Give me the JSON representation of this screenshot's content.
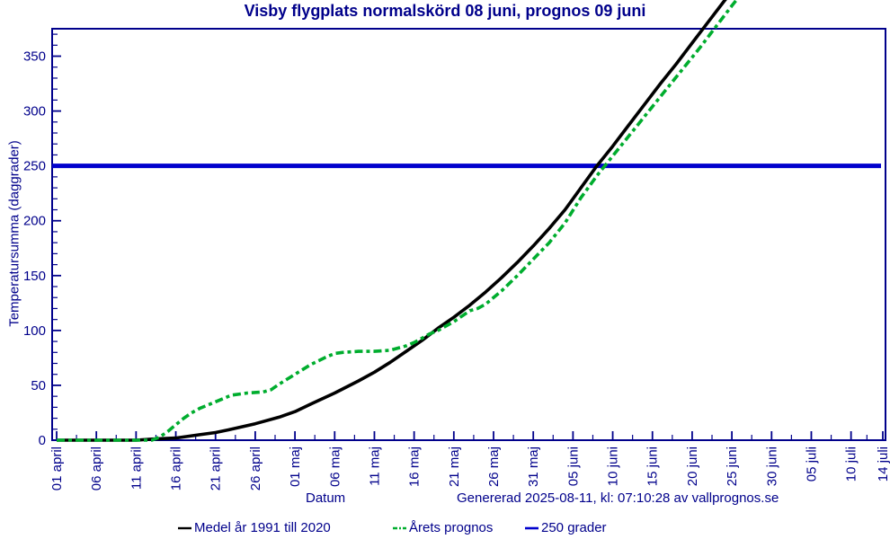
{
  "title": "Visby flygplats normalskörd 08 juni, prognos 09 juni",
  "footer": {
    "xlabel": "Datum",
    "generated": "Genererad 2025-08-11, kl: 07:10:28 av vallprognos.se"
  },
  "legend": [
    {
      "label": "Medel år 1991 till 2020",
      "color": "#000000",
      "style": "solid"
    },
    {
      "label": "Årets prognos",
      "color": "#00AD2E",
      "style": "dash-dot"
    },
    {
      "label": "250 grader",
      "color": "#0000CD",
      "style": "solid"
    }
  ],
  "colors": {
    "axis": "#00008B",
    "text": "#00008B",
    "mean_line": "#000000",
    "forecast_line": "#00AD2E",
    "threshold_line": "#0000CD",
    "background": "#FFFFFF"
  },
  "chart_data": {
    "type": "line",
    "title": "Visby flygplats normalskörd 08 juni, prognos 09 juni",
    "xlabel": "Datum",
    "ylabel": "Temperatursumma (daggrader)",
    "ylim": [
      0,
      375
    ],
    "y_major_ticks": [
      0,
      50,
      100,
      150,
      200,
      250,
      300,
      350
    ],
    "y_minor_step": 10,
    "x_unit": "days since 01 april",
    "xlim": [
      0,
      104
    ],
    "x_ticks": [
      {
        "day": 0,
        "label": "01 april"
      },
      {
        "day": 5,
        "label": "06 april"
      },
      {
        "day": 10,
        "label": "11 april"
      },
      {
        "day": 15,
        "label": "16 april"
      },
      {
        "day": 20,
        "label": "21 april"
      },
      {
        "day": 25,
        "label": "26 april"
      },
      {
        "day": 30,
        "label": "01 maj"
      },
      {
        "day": 35,
        "label": "06 maj"
      },
      {
        "day": 40,
        "label": "11 maj"
      },
      {
        "day": 45,
        "label": "16 maj"
      },
      {
        "day": 50,
        "label": "21 maj"
      },
      {
        "day": 55,
        "label": "26 maj"
      },
      {
        "day": 60,
        "label": "31 maj"
      },
      {
        "day": 65,
        "label": "05 juni"
      },
      {
        "day": 70,
        "label": "10 juni"
      },
      {
        "day": 75,
        "label": "15 juni"
      },
      {
        "day": 80,
        "label": "20 juni"
      },
      {
        "day": 85,
        "label": "25 juni"
      },
      {
        "day": 90,
        "label": "30 juni"
      },
      {
        "day": 95,
        "label": "05 juli"
      },
      {
        "day": 100,
        "label": "10 juli"
      },
      {
        "day": 104,
        "label": "14 juli"
      }
    ],
    "hline": {
      "value": 250,
      "label": "250 grader",
      "color": "#0000CD"
    },
    "series": [
      {
        "name": "Medel år 1991 till 2020",
        "style": "solid",
        "color": "#000000",
        "points": [
          [
            0,
            0
          ],
          [
            5,
            0
          ],
          [
            10,
            0
          ],
          [
            12,
            1
          ],
          [
            15,
            2
          ],
          [
            18,
            5
          ],
          [
            20,
            7
          ],
          [
            22,
            10
          ],
          [
            25,
            15
          ],
          [
            28,
            21
          ],
          [
            30,
            26
          ],
          [
            32,
            33
          ],
          [
            35,
            43
          ],
          [
            38,
            54
          ],
          [
            40,
            62
          ],
          [
            42,
            71
          ],
          [
            44,
            81
          ],
          [
            46,
            91
          ],
          [
            48,
            102
          ],
          [
            50,
            112
          ],
          [
            52,
            123
          ],
          [
            54,
            135
          ],
          [
            56,
            148
          ],
          [
            58,
            162
          ],
          [
            60,
            177
          ],
          [
            62,
            193
          ],
          [
            64,
            210
          ],
          [
            66,
            230
          ],
          [
            68,
            250
          ],
          [
            70,
            268
          ],
          [
            72,
            287
          ],
          [
            74,
            306
          ],
          [
            76,
            325
          ],
          [
            78,
            343
          ],
          [
            80,
            362
          ],
          [
            82,
            381
          ],
          [
            84,
            400
          ],
          [
            85,
            409
          ]
        ]
      },
      {
        "name": "Årets prognos",
        "style": "dash-dot",
        "color": "#00AD2E",
        "points": [
          [
            0,
            0
          ],
          [
            5,
            0
          ],
          [
            10,
            0
          ],
          [
            12,
            0
          ],
          [
            13,
            3
          ],
          [
            14,
            8
          ],
          [
            15,
            14
          ],
          [
            16,
            20
          ],
          [
            17,
            25
          ],
          [
            18,
            29
          ],
          [
            20,
            35
          ],
          [
            21,
            38
          ],
          [
            22,
            41
          ],
          [
            24,
            43
          ],
          [
            26,
            44
          ],
          [
            27,
            46
          ],
          [
            28,
            51
          ],
          [
            30,
            60
          ],
          [
            32,
            69
          ],
          [
            34,
            76
          ],
          [
            35,
            79
          ],
          [
            36,
            80
          ],
          [
            38,
            81
          ],
          [
            40,
            81
          ],
          [
            42,
            82
          ],
          [
            44,
            86
          ],
          [
            45,
            89
          ],
          [
            46,
            93
          ],
          [
            47,
            97
          ],
          [
            48,
            100
          ],
          [
            50,
            108
          ],
          [
            52,
            118
          ],
          [
            53,
            120
          ],
          [
            54,
            124
          ],
          [
            56,
            136
          ],
          [
            58,
            150
          ],
          [
            60,
            165
          ],
          [
            62,
            180
          ],
          [
            64,
            198
          ],
          [
            66,
            221
          ],
          [
            68,
            241
          ],
          [
            69,
            250
          ],
          [
            71,
            268
          ],
          [
            73,
            286
          ],
          [
            75,
            304
          ],
          [
            77,
            322
          ],
          [
            79,
            340
          ],
          [
            81,
            358
          ],
          [
            83,
            377
          ],
          [
            85,
            396
          ],
          [
            86,
            405
          ]
        ]
      }
    ],
    "grid": false,
    "legend_position": "bottom"
  }
}
